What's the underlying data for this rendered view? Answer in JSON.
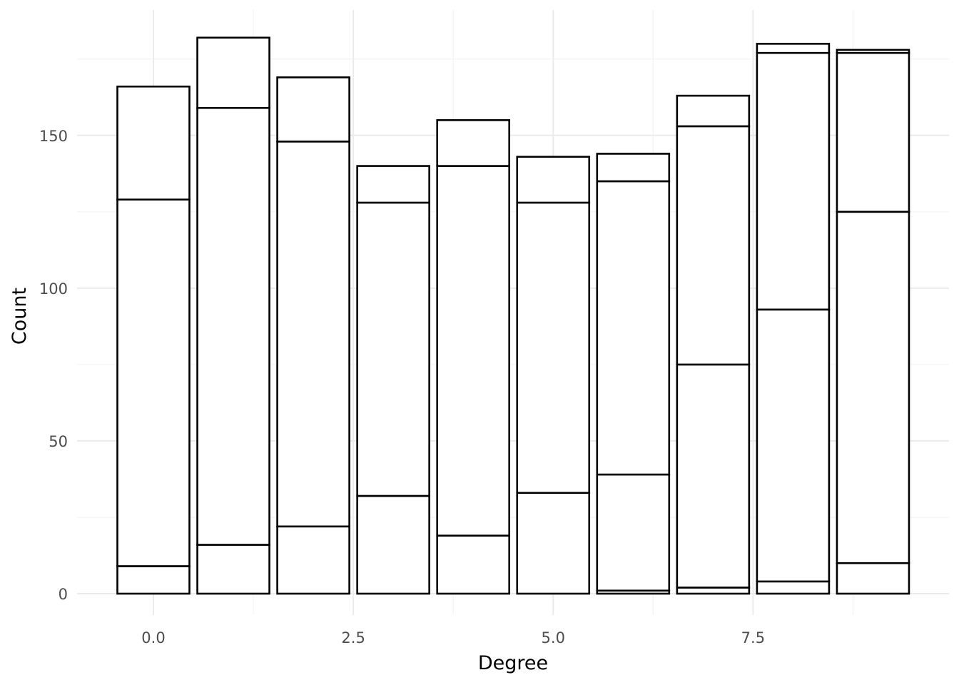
{
  "chart_data": {
    "type": "bar",
    "stacked": true,
    "title": "",
    "xlabel": "Degree",
    "ylabel": "Count",
    "x": [
      0,
      1,
      2,
      3,
      4,
      5,
      6,
      7,
      8,
      9
    ],
    "stack_boundaries": [
      [
        9,
        129,
        166
      ],
      [
        16,
        159,
        182
      ],
      [
        22,
        148,
        169
      ],
      [
        32,
        128,
        140
      ],
      [
        19,
        140,
        155
      ],
      [
        33,
        128,
        143
      ],
      [
        1,
        39,
        135,
        144
      ],
      [
        2,
        75,
        153,
        163
      ],
      [
        4,
        93,
        177,
        180
      ],
      [
        10,
        125,
        177,
        178
      ]
    ],
    "totals": [
      166,
      182,
      169,
      140,
      155,
      143,
      144,
      163,
      180,
      178
    ],
    "xlim": [
      -0.6,
      9.6
    ],
    "ylim": [
      0,
      191
    ],
    "x_ticks": [
      0,
      2.5,
      5,
      7.5
    ],
    "x_tick_labels": [
      "0.0",
      "2.5",
      "5.0",
      "7.5"
    ],
    "y_ticks": [
      0,
      50,
      100,
      150
    ],
    "y_tick_labels": [
      "0",
      "50",
      "100",
      "150"
    ],
    "bar_fill": "#ffffff",
    "bar_outline": "#000000",
    "grid": true,
    "legend": "none"
  }
}
